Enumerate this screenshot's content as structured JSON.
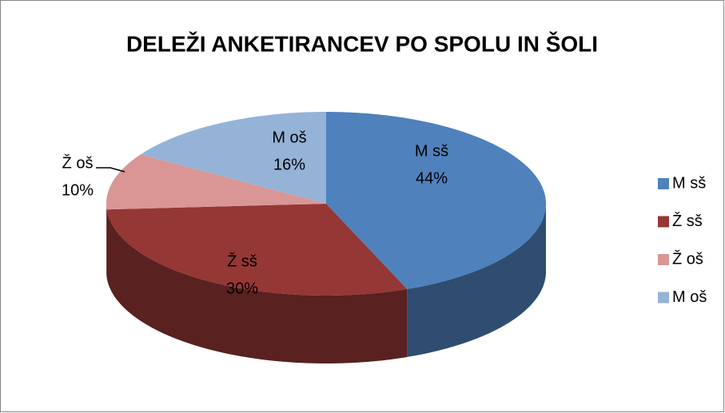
{
  "chart_data": {
    "type": "pie",
    "style": "3d",
    "title": "DELEŽI ANKETIRANCEV PO SPOLU IN ŠOLI",
    "categories": [
      "M sš",
      "Ž sš",
      "Ž oš",
      "M oš"
    ],
    "values": [
      44,
      30,
      10,
      16
    ],
    "value_labels": [
      "44%",
      "30%",
      "10%",
      "16%"
    ],
    "colors": [
      "#4f81bd",
      "#953735",
      "#d99694",
      "#95b3d7"
    ],
    "legend": "right"
  }
}
